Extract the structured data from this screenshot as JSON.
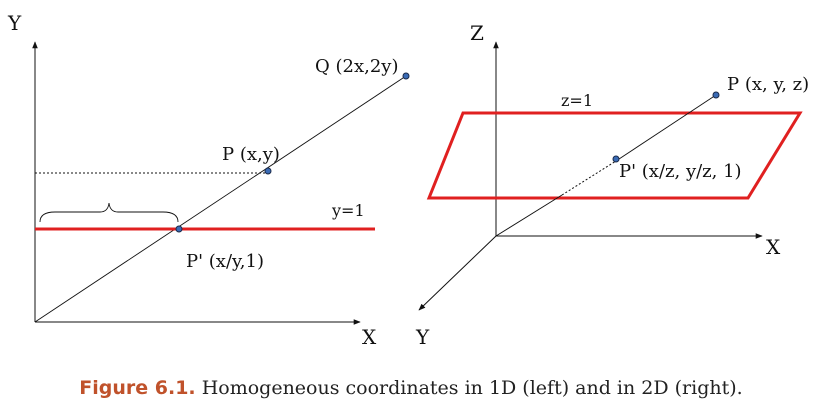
{
  "colors": {
    "red_line": "#e02020",
    "point_fill": "#3a6bb5",
    "caption_label": "#c0522b"
  },
  "left": {
    "y_axis_label": "Y",
    "x_axis_label": "X",
    "point_q_label": "Q (2x,2y)",
    "point_p_label": "P (x,y)",
    "point_p_prime_label": "P' (x/y,1)",
    "line_label": "y=1"
  },
  "right": {
    "z_axis_label": "Z",
    "x_axis_label": "X",
    "y_axis_label": "Y",
    "point_p_label": "P (x, y, z)",
    "point_p_prime_label": "P' (x/z, y/z, 1)",
    "plane_label": "z=1"
  },
  "caption": {
    "label": "Figure 6.1.",
    "text": " Homogeneous coordinates in 1D (left) and in 2D (right)."
  }
}
